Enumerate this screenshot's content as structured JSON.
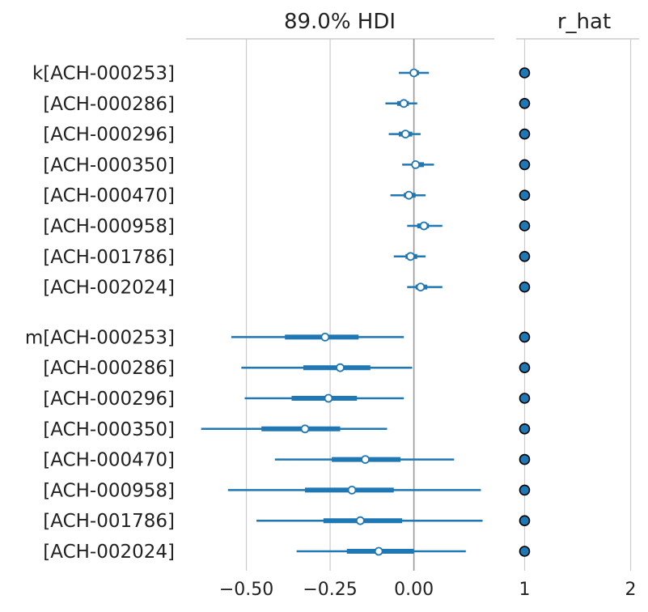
{
  "chart_data": [
    {
      "type": "forest",
      "title": "89.0% HDI",
      "xlim": [
        -0.68,
        0.24
      ],
      "xticks": [
        -0.5,
        -0.25,
        0.0
      ],
      "xtick_labels": [
        "−0.50",
        "−0.25",
        "0.00"
      ],
      "reference_line": 0.0,
      "grid": true,
      "groups": [
        {
          "var": "k",
          "rows": [
            {
              "label": "k[ACH-000253]",
              "mean": 0.0,
              "hdi": [
                -0.045,
                0.045
              ],
              "iqr": [
                -0.01,
                0.015
              ]
            },
            {
              "label": "[ACH-000286]",
              "mean": -0.03,
              "hdi": [
                -0.085,
                0.01
              ],
              "iqr": [
                -0.05,
                -0.015
              ]
            },
            {
              "label": "[ACH-000296]",
              "mean": -0.025,
              "hdi": [
                -0.075,
                0.02
              ],
              "iqr": [
                -0.045,
                -0.005
              ]
            },
            {
              "label": "[ACH-000350]",
              "mean": 0.005,
              "hdi": [
                -0.035,
                0.06
              ],
              "iqr": [
                -0.005,
                0.03
              ]
            },
            {
              "label": "[ACH-000470]",
              "mean": -0.015,
              "hdi": [
                -0.07,
                0.035
              ],
              "iqr": [
                -0.03,
                0.005
              ]
            },
            {
              "label": "[ACH-000958]",
              "mean": 0.03,
              "hdi": [
                -0.02,
                0.085
              ],
              "iqr": [
                0.01,
                0.045
              ]
            },
            {
              "label": "[ACH-001786]",
              "mean": -0.01,
              "hdi": [
                -0.06,
                0.035
              ],
              "iqr": [
                -0.025,
                0.01
              ]
            },
            {
              "label": "[ACH-002024]",
              "mean": 0.02,
              "hdi": [
                -0.02,
                0.085
              ],
              "iqr": [
                0.005,
                0.04
              ]
            }
          ]
        },
        {
          "var": "m",
          "rows": [
            {
              "label": "m[ACH-000253]",
              "mean": -0.265,
              "hdi": [
                -0.545,
                -0.03
              ],
              "iqr": [
                -0.385,
                -0.165
              ]
            },
            {
              "label": "[ACH-000286]",
              "mean": -0.22,
              "hdi": [
                -0.515,
                -0.005
              ],
              "iqr": [
                -0.33,
                -0.13
              ]
            },
            {
              "label": "[ACH-000296]",
              "mean": -0.255,
              "hdi": [
                -0.505,
                -0.03
              ],
              "iqr": [
                -0.365,
                -0.17
              ]
            },
            {
              "label": "[ACH-000350]",
              "mean": -0.325,
              "hdi": [
                -0.635,
                -0.08
              ],
              "iqr": [
                -0.455,
                -0.22
              ]
            },
            {
              "label": "[ACH-000470]",
              "mean": -0.145,
              "hdi": [
                -0.415,
                0.12
              ],
              "iqr": [
                -0.245,
                -0.04
              ]
            },
            {
              "label": "[ACH-000958]",
              "mean": -0.185,
              "hdi": [
                -0.555,
                0.2
              ],
              "iqr": [
                -0.325,
                -0.06
              ]
            },
            {
              "label": "[ACH-001786]",
              "mean": -0.16,
              "hdi": [
                -0.47,
                0.205
              ],
              "iqr": [
                -0.27,
                -0.035
              ]
            },
            {
              "label": "[ACH-002024]",
              "mean": -0.105,
              "hdi": [
                -0.35,
                0.155
              ],
              "iqr": [
                -0.2,
                0.0
              ]
            }
          ]
        }
      ],
      "colors": {
        "line": "#1f77b4",
        "marker_fill": "#ffffff",
        "grid": "#cccccc",
        "zero_line": "#999999",
        "spine": "#cccccc"
      }
    },
    {
      "type": "scatter",
      "title": "r_hat",
      "xlim": [
        0.92,
        2.08
      ],
      "xticks": [
        1,
        2
      ],
      "xtick_labels": [
        "1",
        "2"
      ],
      "grid": true,
      "values": [
        1,
        1,
        1,
        1,
        1,
        1,
        1,
        1,
        1,
        1,
        1,
        1,
        1,
        1,
        1,
        1
      ],
      "colors": {
        "marker_fill": "#1f77b4",
        "marker_edge": "#000000",
        "grid": "#cccccc"
      }
    }
  ]
}
